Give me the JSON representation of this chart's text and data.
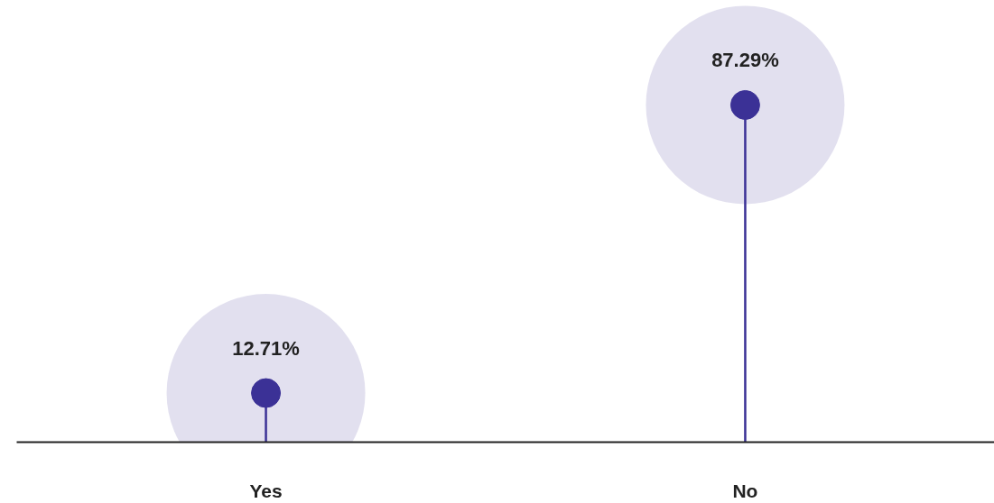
{
  "chart_data": {
    "type": "lollipop",
    "categories": [
      "Yes",
      "No"
    ],
    "values": [
      12.71,
      87.29
    ],
    "value_labels": [
      "12.71%",
      "87.29%"
    ],
    "color": "#3b3196",
    "tick_labels": "x",
    "grid": false,
    "marker": "circle"
  }
}
